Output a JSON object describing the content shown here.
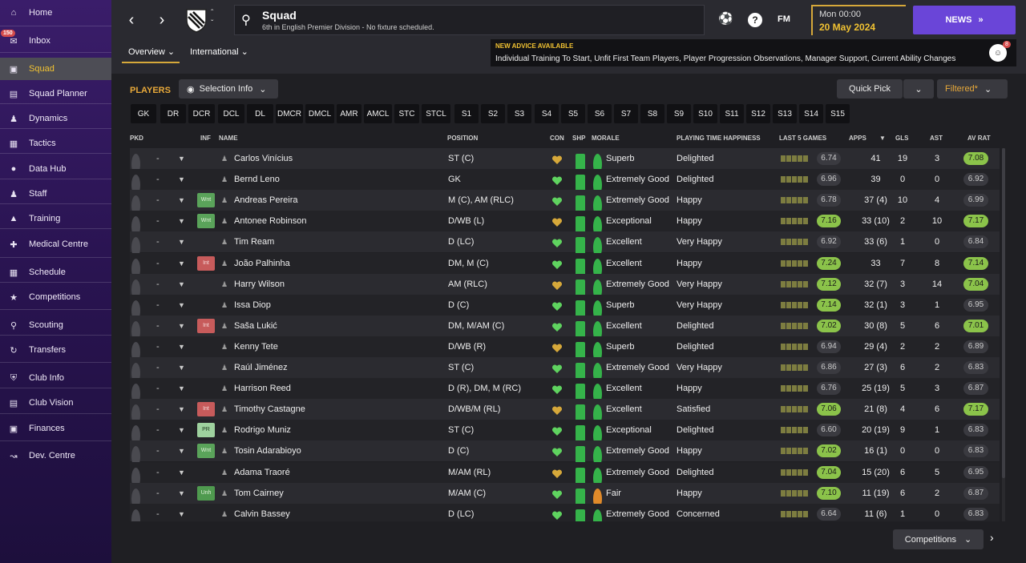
{
  "sidebar": {
    "items": [
      {
        "label": "Home",
        "icon": "home-icon"
      },
      {
        "label": "Inbox",
        "icon": "inbox-icon",
        "badge": "150"
      },
      {
        "label": "Squad",
        "icon": "shirt-icon",
        "active": true
      },
      {
        "label": "Squad Planner",
        "icon": "clipboard-icon"
      },
      {
        "label": "Dynamics",
        "icon": "people-icon"
      },
      {
        "label": "Tactics",
        "icon": "tactics-board-icon"
      },
      {
        "label": "Data Hub",
        "icon": "chart-circle-icon"
      },
      {
        "label": "Staff",
        "icon": "staff-icon"
      },
      {
        "label": "Training",
        "icon": "cone-icon"
      },
      {
        "label": "Medical Centre",
        "icon": "medical-kit-icon"
      },
      {
        "label": "Schedule",
        "icon": "calendar-icon"
      },
      {
        "label": "Competitions",
        "icon": "trophy-icon"
      },
      {
        "label": "Scouting",
        "icon": "search-icon"
      },
      {
        "label": "Transfers",
        "icon": "transfer-arrows-icon"
      },
      {
        "label": "Club Info",
        "icon": "shield-icon"
      },
      {
        "label": "Club Vision",
        "icon": "briefcase-icon"
      },
      {
        "label": "Finances",
        "icon": "money-icon"
      },
      {
        "label": "Dev. Centre",
        "icon": "growth-line-icon"
      }
    ]
  },
  "header": {
    "title": "Squad",
    "subtitle": "6th in English Premier Division - No fixture scheduled.",
    "time": "Mon 00:00",
    "date": "20 May 2024",
    "news_label": "NEWS",
    "fm_label": "FM",
    "help_label": "?",
    "tabs": [
      "Overview",
      "International"
    ]
  },
  "advice": {
    "title": "NEW ADVICE AVAILABLE",
    "text": "Individual Training To Start, Unfit First Team Players, Player Progression Observations, Manager Support, Current Ability Changes",
    "count": "8"
  },
  "toolbar": {
    "players_label": "PLAYERS",
    "selection_info": "Selection Info",
    "quick_pick": "Quick Pick",
    "filtered": "Filtered*",
    "competitions": "Competitions"
  },
  "positions": [
    "GK",
    "DR",
    "DCR",
    "DCL",
    "DL",
    "DMCR",
    "DMCL",
    "AMR",
    "AMCL",
    "STC",
    "STCL",
    "S1",
    "S2",
    "S3",
    "S4",
    "S5",
    "S6",
    "S7",
    "S8",
    "S9",
    "S10",
    "S11",
    "S12",
    "S13",
    "S14",
    "S15"
  ],
  "columns": {
    "pkd": "PKD",
    "inf": "INF",
    "name": "NAME",
    "position": "POSITION",
    "con": "CON",
    "shp": "SHP",
    "morale": "MORALE",
    "pth": "PLAYING TIME HAPPINESS",
    "last5": "LAST 5 GAMES",
    "apps": "APPS",
    "gls": "GLS",
    "ast": "AST",
    "avrat": "AV RAT"
  },
  "colors": {
    "accent": "#f1c232",
    "news": "#6a45d8",
    "good_rating": "#8bc34a",
    "wnt": "#5aa35a",
    "int": "#c75b5b"
  },
  "players": [
    {
      "sel": "-",
      "inf": "",
      "name": "Carlos Vinícius",
      "pos": "ST (C)",
      "morale": "Superb",
      "pth": "Delighted",
      "form": "6.74",
      "apps": "41",
      "gls": "19",
      "ast": "3",
      "avr": "7.08"
    },
    {
      "sel": "-",
      "inf": "",
      "name": "Bernd Leno",
      "pos": "GK",
      "morale": "Extremely Good",
      "pth": "Delighted",
      "form": "6.96",
      "apps": "39",
      "gls": "0",
      "ast": "0",
      "avr": "6.92"
    },
    {
      "sel": "-",
      "inf": "Wnt",
      "name": "Andreas Pereira",
      "pos": "M (C), AM (RLC)",
      "morale": "Extremely Good",
      "pth": "Happy",
      "form": "6.78",
      "apps": "37 (4)",
      "gls": "10",
      "ast": "4",
      "avr": "6.99"
    },
    {
      "sel": "-",
      "inf": "Wnt",
      "name": "Antonee Robinson",
      "pos": "D/WB (L)",
      "morale": "Exceptional",
      "pth": "Happy",
      "form": "7.16",
      "apps": "33 (10)",
      "gls": "2",
      "ast": "10",
      "avr": "7.17"
    },
    {
      "sel": "-",
      "inf": "",
      "name": "Tim Ream",
      "pos": "D (LC)",
      "morale": "Excellent",
      "pth": "Very Happy",
      "form": "6.92",
      "apps": "33 (6)",
      "gls": "1",
      "ast": "0",
      "avr": "6.84"
    },
    {
      "sel": "-",
      "inf": "Int",
      "name": "João Palhinha",
      "pos": "DM, M (C)",
      "morale": "Excellent",
      "pth": "Happy",
      "form": "7.24",
      "apps": "33",
      "gls": "7",
      "ast": "8",
      "avr": "7.14"
    },
    {
      "sel": "-",
      "inf": "",
      "name": "Harry Wilson",
      "pos": "AM (RLC)",
      "morale": "Extremely Good",
      "pth": "Very Happy",
      "form": "7.12",
      "apps": "32 (7)",
      "gls": "3",
      "ast": "14",
      "avr": "7.04"
    },
    {
      "sel": "-",
      "inf": "",
      "name": "Issa Diop",
      "pos": "D (C)",
      "morale": "Superb",
      "pth": "Very Happy",
      "form": "7.14",
      "apps": "32 (1)",
      "gls": "3",
      "ast": "1",
      "avr": "6.95"
    },
    {
      "sel": "-",
      "inf": "Int",
      "name": "Saša Lukić",
      "pos": "DM, M/AM (C)",
      "morale": "Excellent",
      "pth": "Delighted",
      "form": "7.02",
      "apps": "30 (8)",
      "gls": "5",
      "ast": "6",
      "avr": "7.01"
    },
    {
      "sel": "-",
      "inf": "",
      "name": "Kenny Tete",
      "pos": "D/WB (R)",
      "morale": "Superb",
      "pth": "Delighted",
      "form": "6.94",
      "apps": "29 (4)",
      "gls": "2",
      "ast": "2",
      "avr": "6.89"
    },
    {
      "sel": "-",
      "inf": "",
      "name": "Raúl Jiménez",
      "pos": "ST (C)",
      "morale": "Extremely Good",
      "pth": "Very Happy",
      "form": "6.86",
      "apps": "27 (3)",
      "gls": "6",
      "ast": "2",
      "avr": "6.83"
    },
    {
      "sel": "-",
      "inf": "",
      "name": "Harrison Reed",
      "pos": "D (R), DM, M (RC)",
      "morale": "Excellent",
      "pth": "Happy",
      "form": "6.76",
      "apps": "25 (19)",
      "gls": "5",
      "ast": "3",
      "avr": "6.87"
    },
    {
      "sel": "-",
      "inf": "Int",
      "name": "Timothy Castagne",
      "pos": "D/WB/M (RL)",
      "morale": "Excellent",
      "pth": "Satisfied",
      "form": "7.06",
      "apps": "21 (8)",
      "gls": "4",
      "ast": "6",
      "avr": "7.17"
    },
    {
      "sel": "-",
      "inf": "PR",
      "name": "Rodrigo Muniz",
      "pos": "ST (C)",
      "morale": "Exceptional",
      "pth": "Delighted",
      "form": "6.60",
      "apps": "20 (19)",
      "gls": "9",
      "ast": "1",
      "avr": "6.83"
    },
    {
      "sel": "-",
      "inf": "Wnt",
      "name": "Tosin Adarabioyo",
      "pos": "D (C)",
      "morale": "Extremely Good",
      "pth": "Happy",
      "form": "7.02",
      "apps": "16 (1)",
      "gls": "0",
      "ast": "0",
      "avr": "6.83"
    },
    {
      "sel": "-",
      "inf": "",
      "name": "Adama Traoré",
      "pos": "M/AM (RL)",
      "morale": "Extremely Good",
      "pth": "Delighted",
      "form": "7.04",
      "apps": "15 (20)",
      "gls": "6",
      "ast": "5",
      "avr": "6.95"
    },
    {
      "sel": "-",
      "inf": "Unh",
      "name": "Tom Cairney",
      "pos": "M/AM (C)",
      "morale": "Fair",
      "pth": "Happy",
      "form": "7.10",
      "apps": "11 (19)",
      "gls": "6",
      "ast": "2",
      "avr": "6.87"
    },
    {
      "sel": "-",
      "inf": "",
      "name": "Calvin Bassey",
      "pos": "D (LC)",
      "morale": "Extremely Good",
      "pth": "Concerned",
      "form": "6.64",
      "apps": "11 (6)",
      "gls": "1",
      "ast": "0",
      "avr": "6.83"
    }
  ]
}
